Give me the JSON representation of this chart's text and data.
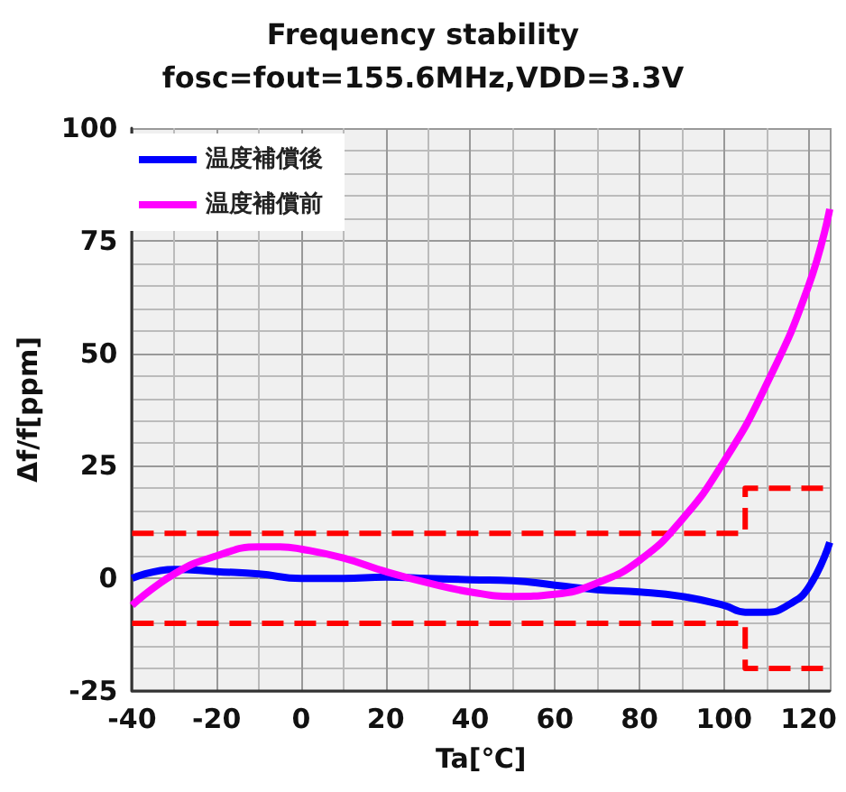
{
  "chart_data": {
    "type": "line",
    "title": "Frequency stability",
    "subtitle": "fosc=fout=155.6MHz,VDD=3.3V",
    "xlabel": "Ta[℃]",
    "ylabel": "Δf/f[ppm]",
    "xlim": [
      -40,
      125
    ],
    "xticks": [
      -40,
      -20,
      0,
      20,
      40,
      60,
      80,
      100,
      120
    ],
    "ylim": [
      -25,
      100
    ],
    "yticks": [
      -25,
      0,
      25,
      50,
      75,
      100
    ],
    "grid": true,
    "legend": "top left",
    "marker": "none",
    "line_style": "solid",
    "series": [
      {
        "name": "温度補償後",
        "color": "#0000ff",
        "x": [
          -40,
          -30,
          -20,
          -10,
          0,
          10,
          20,
          30,
          40,
          50,
          60,
          70,
          80,
          90,
          100,
          105,
          110,
          115,
          120,
          125
        ],
        "values": [
          0,
          2,
          1.5,
          1,
          0,
          0,
          0.3,
          0,
          -0.3,
          -0.5,
          -1.5,
          -2.5,
          -3,
          -4,
          -6,
          -7.5,
          -7.5,
          -6,
          -2,
          8
        ]
      },
      {
        "name": "温度補償前",
        "color": "#ff00ff",
        "x": [
          -40,
          -30,
          -20,
          -10,
          -5,
          0,
          10,
          20,
          30,
          40,
          50,
          60,
          70,
          80,
          90,
          100,
          110,
          120,
          125
        ],
        "values": [
          -6,
          1,
          5,
          7,
          7,
          6.5,
          4.5,
          1.5,
          -1,
          -3,
          -4,
          -3.5,
          -1,
          4,
          13,
          26,
          43,
          65,
          82
        ]
      },
      {
        "color": "#ff0000",
        "line_style": "dashed",
        "x": [
          -40,
          105,
          105,
          125
        ],
        "values": [
          10,
          10,
          20,
          20
        ]
      },
      {
        "color": "#ff0000",
        "line_style": "dashed",
        "x": [
          -40,
          105,
          105,
          125
        ],
        "values": [
          -10,
          -10,
          -20,
          -20
        ]
      }
    ]
  }
}
